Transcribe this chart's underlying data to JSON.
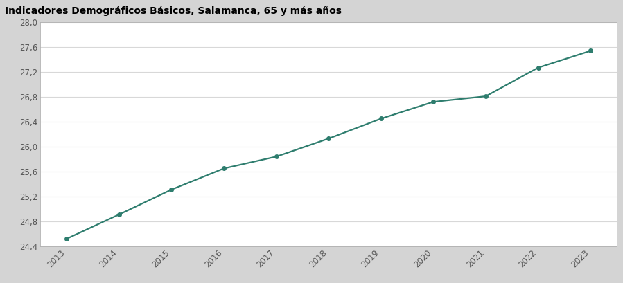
{
  "title": "Indicadores Demográficos Básicos, Salamanca, 65 y más años",
  "years": [
    2013,
    2014,
    2015,
    2016,
    2017,
    2018,
    2019,
    2020,
    2021,
    2022,
    2023
  ],
  "values": [
    24.52,
    24.91,
    25.31,
    25.65,
    25.84,
    26.13,
    26.45,
    26.72,
    26.81,
    27.27,
    27.54
  ],
  "line_color": "#2e7d6e",
  "marker_color": "#2e7d6e",
  "ylim_min": 24.4,
  "ylim_max": 28.0,
  "ytick_step": 0.4,
  "plot_bg_color": "#ffffff",
  "title_bg_color": "#8fbfbf",
  "title_font_color": "#000000",
  "title_fontsize": 10,
  "grid_color": "#d8d8d8",
  "tick_label_color": "#555555",
  "tick_fontsize": 8.5,
  "outer_bg_color": "#d4d4d4",
  "border_color": "#b0b0b0"
}
